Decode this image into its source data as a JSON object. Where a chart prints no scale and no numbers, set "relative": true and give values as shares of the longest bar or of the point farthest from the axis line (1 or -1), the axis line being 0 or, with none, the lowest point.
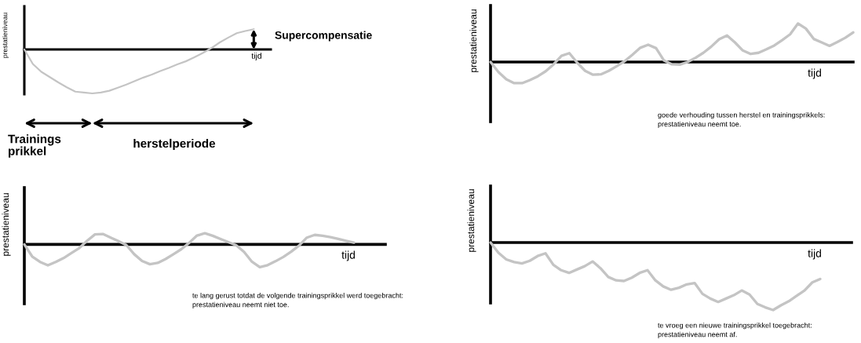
{
  "chart_data": [
    {
      "type": "line",
      "relative": true,
      "tick_labels": false,
      "xlabel": "tijd",
      "ylabel": "prestatieniveau",
      "categories": [
        null,
        null,
        null,
        null,
        null,
        null,
        null,
        null,
        null,
        null,
        null,
        null,
        null,
        null,
        null,
        null,
        null,
        null,
        null,
        null,
        null,
        null,
        null,
        null,
        null,
        null,
        null,
        null,
        null,
        null
      ],
      "series": [
        {
          "color": "#c4c4c4",
          "values": [
            0,
            -0.33,
            -0.51,
            -0.63,
            -0.75,
            -0.86,
            -0.96,
            -0.98,
            -1,
            -0.98,
            -0.94,
            -0.87,
            -0.8,
            -0.72,
            -0.64,
            -0.57,
            -0.49,
            -0.42,
            -0.34,
            -0.27,
            -0.18,
            -0.08,
            0.03,
            0.16,
            0.27,
            0.37,
            0.42,
            0.46,
            null,
            null
          ]
        }
      ],
      "annotations": [
        "Supercompensatie",
        "Trainings\nprikkel",
        "herstelperiode"
      ]
    },
    {
      "type": "line",
      "relative": true,
      "tick_labels": false,
      "xlabel": "tijd",
      "ylabel": "prestatieniveau",
      "categories": [
        null,
        null,
        null,
        null,
        null,
        null,
        null,
        null,
        null,
        null,
        null,
        null,
        null,
        null,
        null,
        null,
        null,
        null,
        null,
        null,
        null,
        null,
        null,
        null,
        null,
        null,
        null,
        null,
        null,
        null,
        null,
        null,
        null,
        null,
        null,
        null,
        null,
        null,
        null,
        null,
        null,
        null,
        null,
        null,
        null,
        null,
        null
      ],
      "series": [
        {
          "color": "#c4c4c4",
          "values": [
            0,
            -0.26,
            -0.45,
            -0.55,
            -0.55,
            -0.47,
            -0.37,
            -0.24,
            -0.06,
            0.16,
            0.23,
            -0.02,
            -0.23,
            -0.33,
            -0.32,
            -0.23,
            -0.11,
            0.02,
            0.19,
            0.37,
            0.45,
            0.36,
            0.04,
            -0.06,
            -0.07,
            0,
            0.11,
            0.24,
            0.4,
            0.59,
            0.69,
            0.51,
            0.3,
            0.21,
            0.24,
            0.33,
            0.43,
            0.57,
            0.72,
            1.0,
            0.87,
            0.6,
            0.51,
            0.42,
            0.52,
            0.63,
            0.77
          ]
        }
      ],
      "annotations": [
        "goede verhouding tussen herstel en trainingsprikkels:\nprestatieniveau neemt toe."
      ]
    },
    {
      "type": "line",
      "relative": true,
      "tick_labels": false,
      "xlabel": "tijd",
      "ylabel": "prestatieniveau",
      "categories": [
        null,
        null,
        null,
        null,
        null,
        null,
        null,
        null,
        null,
        null,
        null,
        null,
        null,
        null,
        null,
        null,
        null,
        null,
        null,
        null,
        null,
        null,
        null,
        null,
        null,
        null,
        null,
        null,
        null,
        null,
        null,
        null,
        null,
        null,
        null,
        null,
        null,
        null,
        null,
        null,
        null,
        null,
        null,
        null,
        null,
        null,
        null
      ],
      "series": [
        {
          "color": "#c4c4c4",
          "values": [
            0,
            -0.53,
            -0.77,
            -0.92,
            -0.77,
            -0.6,
            -0.38,
            -0.16,
            0.16,
            0.44,
            0.46,
            0.3,
            0.14,
            -0.03,
            -0.43,
            -0.73,
            -0.87,
            -0.81,
            -0.64,
            -0.43,
            -0.21,
            0.07,
            0.39,
            0.49,
            0.38,
            0.24,
            0.1,
            -0.04,
            -0.33,
            -0.76,
            -1.0,
            -0.91,
            -0.74,
            -0.55,
            -0.32,
            -0.05,
            0.3,
            0.42,
            0.38,
            0.32,
            0.24,
            0.16,
            0.08,
            null,
            null,
            null,
            null
          ]
        }
      ],
      "annotations": [
        "te lang gerust totdat de volgende trainingsprikkel werd toegebracht:\nprestatieniveau neemt niet toe."
      ]
    },
    {
      "type": "line",
      "relative": true,
      "tick_labels": false,
      "xlabel": "tijd",
      "ylabel": "prestatieniveau",
      "categories": [
        null,
        null,
        null,
        null,
        null,
        null,
        null,
        null,
        null,
        null,
        null,
        null,
        null,
        null,
        null,
        null,
        null,
        null,
        null,
        null,
        null,
        null,
        null,
        null,
        null,
        null,
        null,
        null,
        null,
        null,
        null,
        null,
        null,
        null,
        null,
        null,
        null,
        null,
        null,
        null,
        null,
        null,
        null,
        null,
        null,
        null,
        null
      ],
      "series": [
        {
          "color": "#c4c4c4",
          "values": [
            0,
            -0.15,
            -0.25,
            -0.29,
            -0.31,
            -0.27,
            -0.2,
            -0.16,
            -0.33,
            -0.41,
            -0.45,
            -0.4,
            -0.35,
            -0.28,
            -0.38,
            -0.51,
            -0.56,
            -0.57,
            -0.52,
            -0.45,
            -0.41,
            -0.56,
            -0.65,
            -0.7,
            -0.67,
            -0.62,
            -0.6,
            -0.76,
            -0.83,
            -0.88,
            -0.83,
            -0.78,
            -0.71,
            -0.77,
            -0.91,
            -0.96,
            -1.0,
            -0.93,
            -0.87,
            -0.79,
            -0.71,
            -0.59,
            -0.54,
            null,
            null,
            null,
            null
          ]
        }
      ],
      "annotations": [
        "te vroeg een nieuwe trainingsprikkel toegebracht:\nprestatieniveau neemt af."
      ]
    }
  ]
}
